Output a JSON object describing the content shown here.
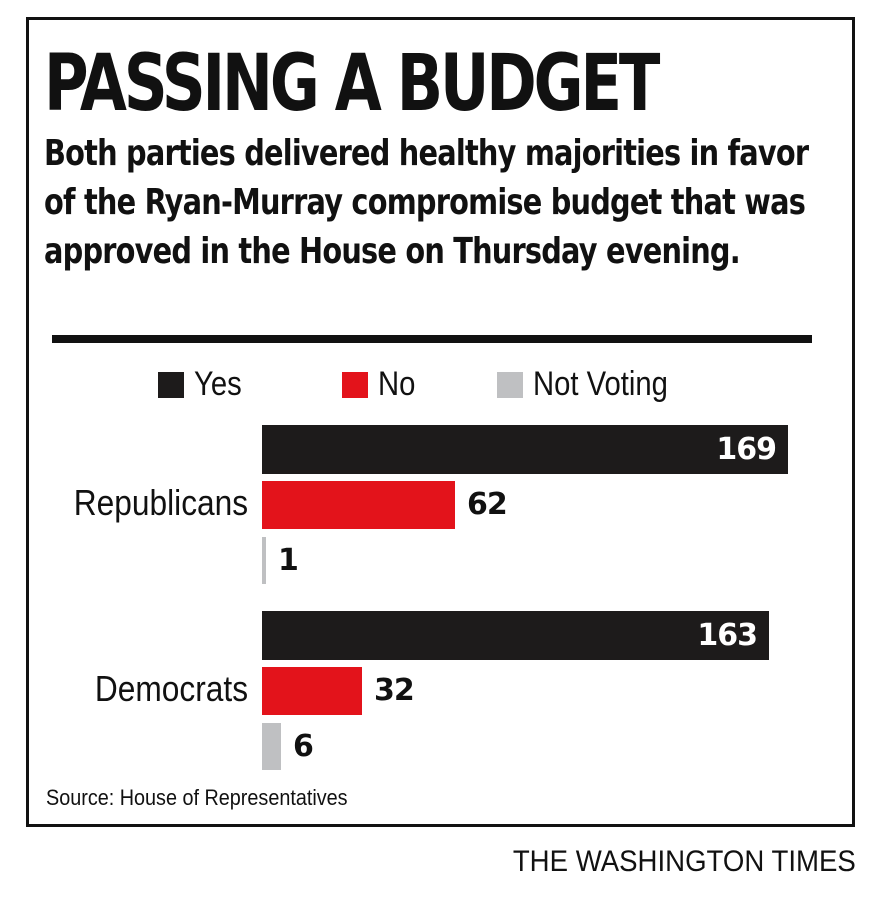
{
  "header": {
    "title": "PASSING A BUDGET",
    "subtitle": "Both parties delivered healthy majorities in favor of the Ryan-Murray compromise budget that was approved in the House on Thursday evening."
  },
  "footer": {
    "source": "Source: House of Representatives",
    "brand": "THE WASHINGTON TIMES"
  },
  "colors": {
    "yes": "#1d1b1b",
    "no": "#e3131b",
    "not_voting": "#bfc0c2",
    "text": "#111111"
  },
  "chart_data": {
    "type": "bar",
    "orientation": "horizontal",
    "title": "PASSING A BUDGET",
    "subtitle": "Both parties delivered healthy majorities in favor of the Ryan-Murray compromise budget that was approved in the House on Thursday evening.",
    "categories": [
      "Republicans",
      "Democrats"
    ],
    "series": [
      {
        "name": "Yes",
        "values": [
          169,
          163
        ],
        "color": "#1d1b1b"
      },
      {
        "name": "No",
        "values": [
          62,
          32
        ],
        "color": "#e3131b"
      },
      {
        "name": "Not Voting",
        "values": [
          1,
          6
        ],
        "color": "#bfc0c2"
      }
    ],
    "xlim": [
      0,
      169
    ],
    "grid": false,
    "legend_position": "top",
    "data_labels": true
  }
}
